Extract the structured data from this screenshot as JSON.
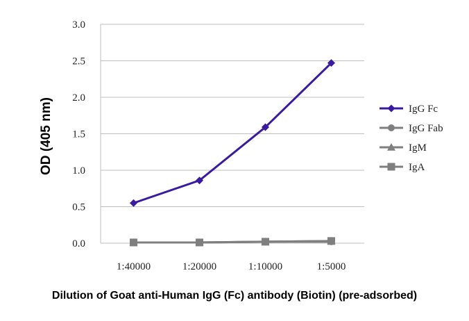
{
  "chart_data": {
    "type": "line",
    "title": "",
    "xlabel": "Dilution of Goat anti-Human IgG (Fc) antibody (Biotin) (pre-adsorbed)",
    "ylabel": "OD (405 nm)",
    "categories": [
      "1:40000",
      "1:20000",
      "1:10000",
      "1:5000"
    ],
    "ylim": [
      0,
      3.0
    ],
    "yticks": [
      "0.0",
      "0.5",
      "1.0",
      "1.5",
      "2.0",
      "2.5",
      "3.0"
    ],
    "grid": "horizontal",
    "legend_position": "right",
    "series": [
      {
        "name": "IgG Fc",
        "color": "#3a1a9e",
        "marker": "diamond",
        "values": [
          0.55,
          0.86,
          1.59,
          2.47
        ]
      },
      {
        "name": "IgG Fab",
        "color": "#7f7f7f",
        "marker": "circle",
        "values": [
          0.01,
          0.01,
          0.02,
          0.02
        ]
      },
      {
        "name": "IgM",
        "color": "#7f7f7f",
        "marker": "triangle",
        "values": [
          0.01,
          0.01,
          0.02,
          0.03
        ]
      },
      {
        "name": "IgA",
        "color": "#7f7f7f",
        "marker": "square",
        "values": [
          0.01,
          0.01,
          0.02,
          0.03
        ]
      }
    ]
  }
}
